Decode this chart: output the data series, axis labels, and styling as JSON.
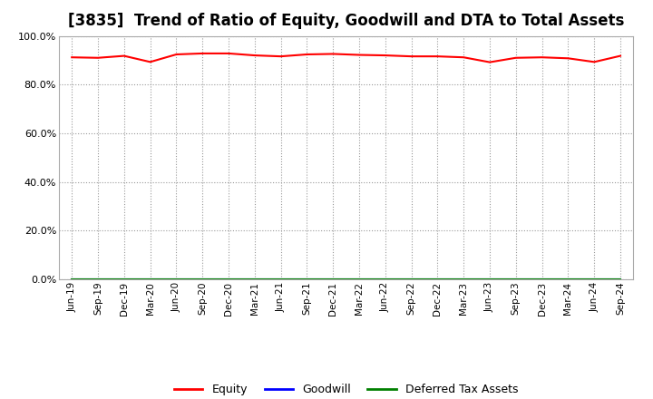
{
  "title": "[3835]  Trend of Ratio of Equity, Goodwill and DTA to Total Assets",
  "x_labels": [
    "Jun-19",
    "Sep-19",
    "Dec-19",
    "Mar-20",
    "Jun-20",
    "Sep-20",
    "Dec-20",
    "Mar-21",
    "Jun-21",
    "Sep-21",
    "Dec-21",
    "Mar-22",
    "Jun-22",
    "Sep-22",
    "Dec-22",
    "Mar-23",
    "Jun-23",
    "Sep-23",
    "Dec-23",
    "Mar-24",
    "Jun-24",
    "Sep-24"
  ],
  "equity": [
    0.912,
    0.91,
    0.918,
    0.893,
    0.924,
    0.928,
    0.928,
    0.92,
    0.916,
    0.924,
    0.926,
    0.922,
    0.92,
    0.916,
    0.916,
    0.912,
    0.892,
    0.91,
    0.912,
    0.908,
    0.893,
    0.918
  ],
  "goodwill": [
    0.001,
    0.001,
    0.001,
    0.001,
    0.001,
    0.001,
    0.001,
    0.001,
    0.001,
    0.001,
    0.001,
    0.001,
    0.001,
    0.001,
    0.001,
    0.001,
    0.001,
    0.001,
    0.001,
    0.001,
    0.001,
    0.001
  ],
  "dta": [
    0.001,
    0.001,
    0.001,
    0.001,
    0.001,
    0.001,
    0.001,
    0.001,
    0.001,
    0.001,
    0.001,
    0.001,
    0.001,
    0.001,
    0.001,
    0.001,
    0.001,
    0.001,
    0.001,
    0.001,
    0.001,
    0.001
  ],
  "equity_color": "#ff0000",
  "goodwill_color": "#0000ff",
  "dta_color": "#008000",
  "ylim": [
    0.0,
    1.0
  ],
  "yticks": [
    0.0,
    0.2,
    0.4,
    0.6,
    0.8,
    1.0
  ],
  "background_color": "#ffffff",
  "plot_bg_color": "#ffffff",
  "grid_color": "#999999",
  "title_fontsize": 12,
  "legend_labels": [
    "Equity",
    "Goodwill",
    "Deferred Tax Assets"
  ]
}
